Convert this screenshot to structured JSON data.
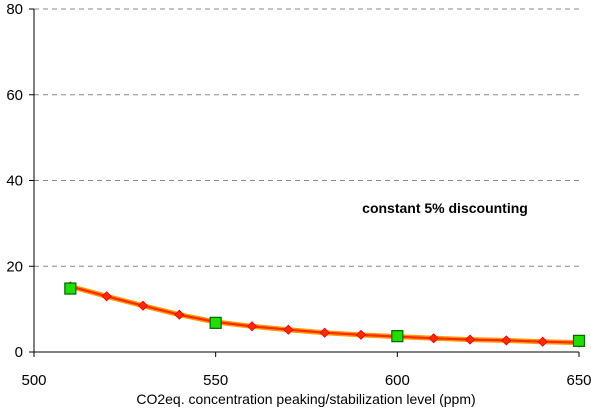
{
  "chart_data": {
    "type": "line",
    "xlabel": "CO2eq. concentration peaking/stabilization level (ppm)",
    "ylabel": "",
    "xlim": [
      500,
      650
    ],
    "ylim": [
      0,
      80
    ],
    "xticks": [
      500,
      550,
      600,
      650
    ],
    "yticks": [
      0,
      20,
      40,
      60,
      80
    ],
    "grid": "horizontal dashed",
    "annotation": "constant 5% discounting",
    "series": [
      {
        "marker": "diamond",
        "color": "#ff2a00",
        "x": [
          510,
          520,
          530,
          540,
          550,
          560,
          570,
          580,
          590,
          600,
          610,
          620,
          630,
          640,
          650
        ],
        "y": [
          15.3,
          13.0,
          10.8,
          8.7,
          7.0,
          6.0,
          5.2,
          4.5,
          4.0,
          3.6,
          3.2,
          2.9,
          2.7,
          2.4,
          2.2
        ]
      },
      {
        "marker": "square",
        "color": "#22dd00",
        "x": [
          510,
          550,
          600,
          650
        ],
        "y": [
          14.8,
          6.8,
          3.7,
          2.6
        ]
      }
    ]
  }
}
